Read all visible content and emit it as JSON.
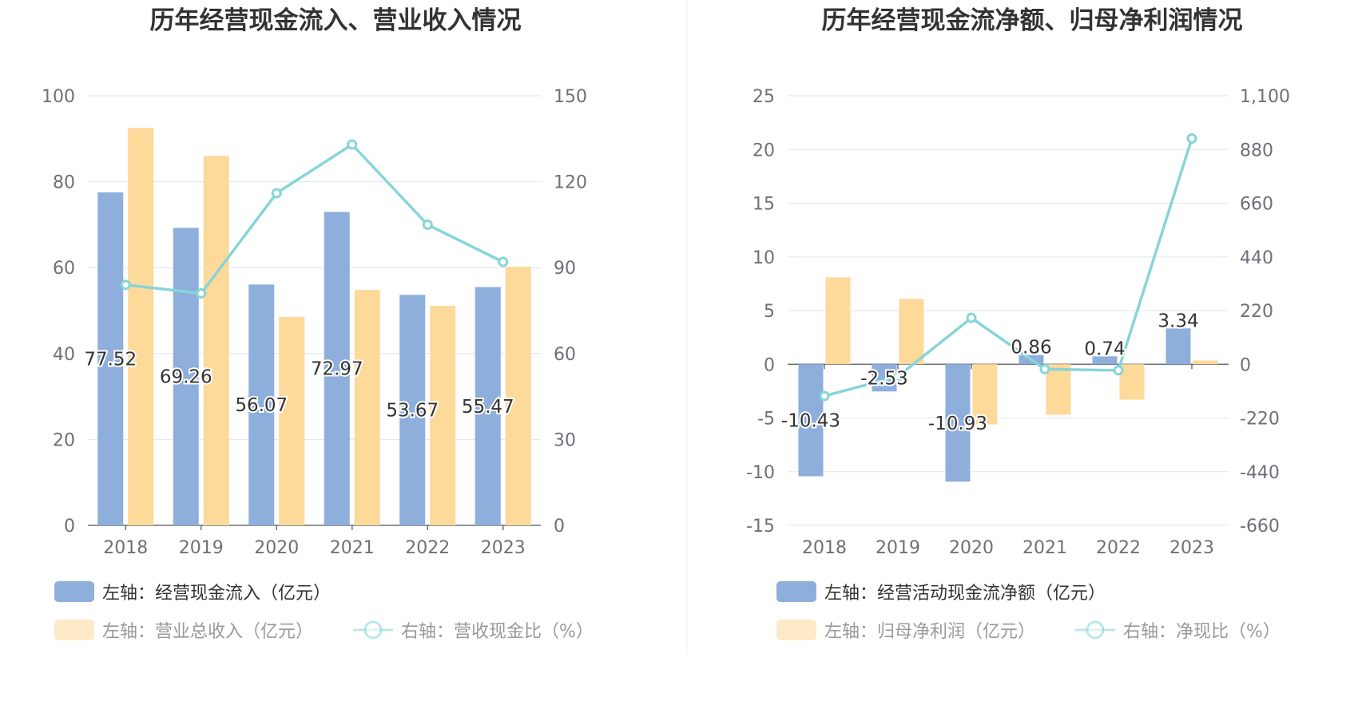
{
  "chart_data": [
    {
      "type": "bar",
      "title": "历年经营现金流入、营业收入情况",
      "categories": [
        "2018",
        "2019",
        "2020",
        "2021",
        "2022",
        "2023"
      ],
      "left_axis": {
        "min": 0,
        "max": 100,
        "ticks": [
          "0",
          "20",
          "40",
          "60",
          "80",
          "100"
        ]
      },
      "right_axis": {
        "min": 0,
        "max": 150,
        "ticks": [
          "0",
          "30",
          "60",
          "90",
          "120",
          "150"
        ]
      },
      "grid": true,
      "legend_position": "bottom-left",
      "series": [
        {
          "name": "左轴：经营现金流入（亿元）",
          "type": "bar",
          "axis": "left",
          "color": "#8eaedc",
          "values": [
            77.52,
            69.26,
            56.07,
            72.97,
            53.67,
            55.47
          ],
          "labels": [
            "77.52",
            "69.26",
            "56.07",
            "72.97",
            "53.67",
            "55.47"
          ]
        },
        {
          "name": "左轴：营业总收入（亿元）",
          "type": "bar",
          "axis": "left",
          "color": "#fdd99a",
          "values": [
            92.5,
            86.0,
            48.5,
            54.8,
            51.1,
            60.2
          ]
        },
        {
          "name": "右轴：营收现金比（%）",
          "type": "line",
          "axis": "right",
          "color": "#87d5d8",
          "values": [
            84,
            81,
            116,
            133,
            105,
            92
          ]
        }
      ]
    },
    {
      "type": "bar",
      "title": "历年经营现金流净额、归母净利润情况",
      "categories": [
        "2018",
        "2019",
        "2020",
        "2021",
        "2022",
        "2023"
      ],
      "left_axis": {
        "min": -15,
        "max": 25,
        "ticks": [
          "-15",
          "-10",
          "-5",
          "0",
          "5",
          "10",
          "15",
          "20",
          "25"
        ]
      },
      "right_axis": {
        "min": -660,
        "max": 1100,
        "ticks": [
          "-660",
          "-440",
          "-220",
          "0",
          "220",
          "440",
          "660",
          "880",
          "1,100"
        ]
      },
      "grid": true,
      "legend_position": "bottom-left",
      "series": [
        {
          "name": "左轴：经营活动现金流净额（亿元）",
          "type": "bar",
          "axis": "left",
          "color": "#8eaedc",
          "values": [
            -10.43,
            -2.53,
            -10.93,
            0.86,
            0.74,
            3.34
          ],
          "labels": [
            "-10.43",
            "-2.53",
            "-10.93",
            "0.86",
            "0.74",
            "3.34"
          ]
        },
        {
          "name": "左轴：归母净利润（亿元）",
          "type": "bar",
          "axis": "left",
          "color": "#fdd99a",
          "values": [
            8.1,
            6.1,
            -5.6,
            -4.7,
            -3.3,
            0.35
          ]
        },
        {
          "name": "右轴：净现比（%）",
          "type": "line",
          "axis": "right",
          "color": "#87d5d8",
          "values": [
            -130,
            -50,
            190,
            -20,
            -25,
            925
          ]
        }
      ]
    }
  ]
}
